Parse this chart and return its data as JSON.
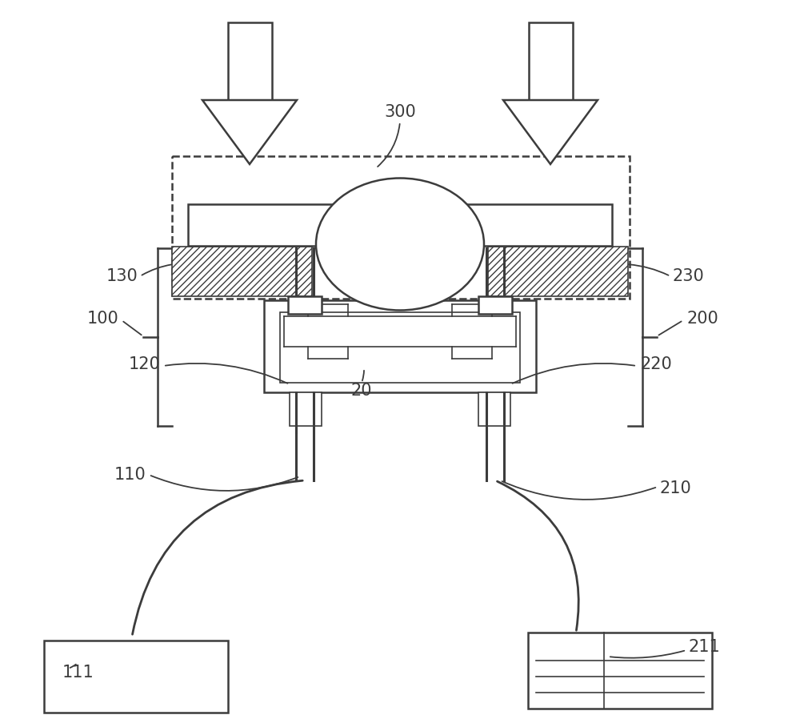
{
  "bg": "#ffffff",
  "lc": "#3c3c3c",
  "lw": 1.8,
  "lw_thin": 1.2,
  "lw_cable": 2.0,
  "fs": 15,
  "figw": 10.0,
  "figh": 9.08
}
